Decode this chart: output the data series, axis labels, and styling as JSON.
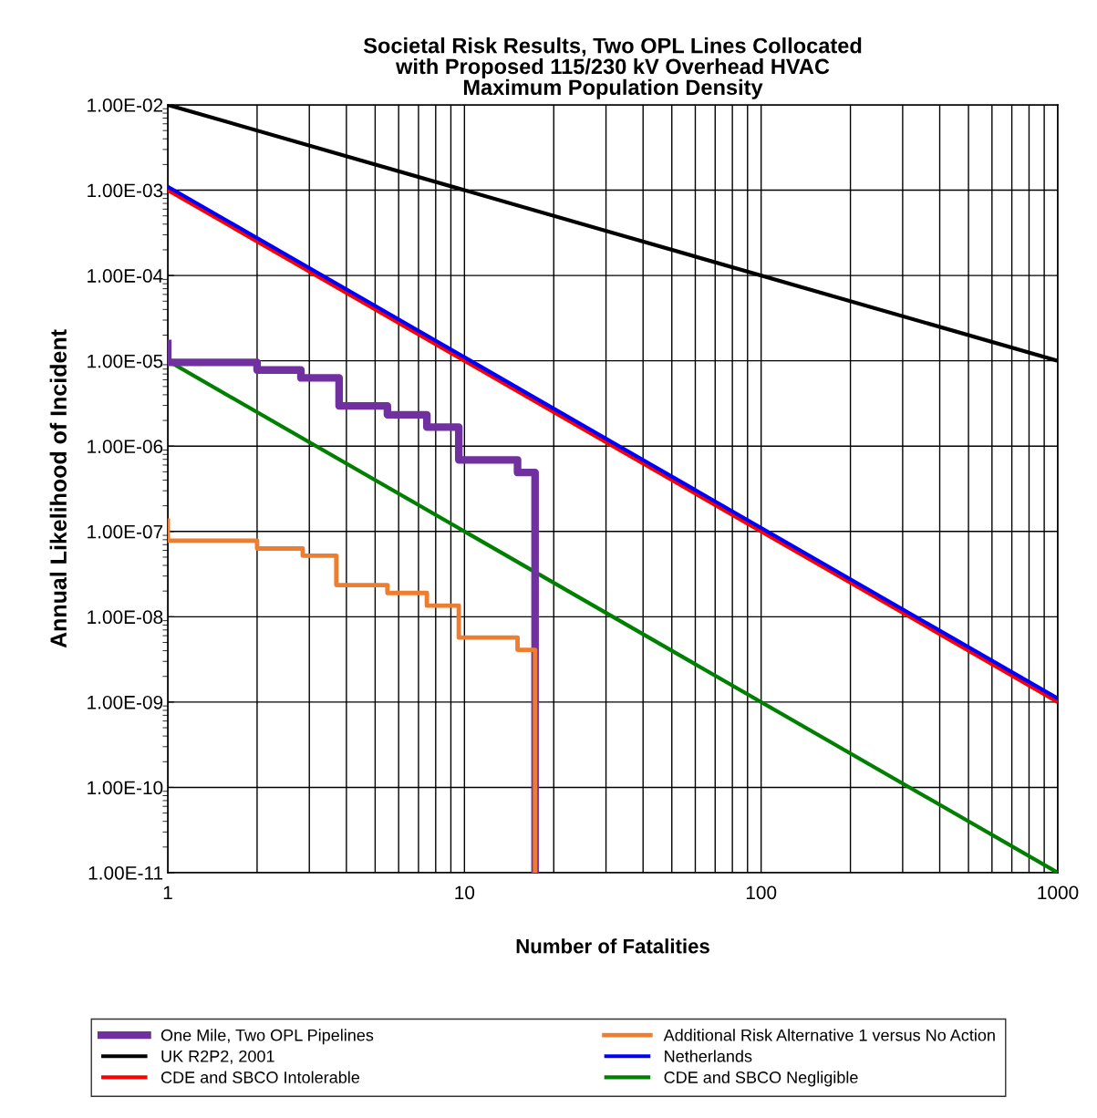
{
  "chart_data": {
    "type": "line",
    "title": "Societal Risk Results, Two OPL Lines Collocated\nwith Proposed 115/230 kV Overhead HVAC\nMaximum Population Density",
    "xlabel": "Number of Fatalities",
    "ylabel": "Annual Likelihood of Incident",
    "log": "xy",
    "grid": true,
    "legend": "bottom",
    "xlim": [
      1,
      1000
    ],
    "xticks": [
      1,
      10,
      100,
      1000
    ],
    "ylim": [
      1e-11,
      0.01
    ],
    "yticks": [
      {
        "value": 1e-11,
        "label": "1.00E-11"
      },
      {
        "value": 1e-10,
        "label": "1.00E-10"
      },
      {
        "value": 1e-09,
        "label": "1.00E-09"
      },
      {
        "value": 1e-08,
        "label": "1.00E-08"
      },
      {
        "value": 1e-07,
        "label": "1.00E-07"
      },
      {
        "value": 1e-06,
        "label": "1.00E-06"
      },
      {
        "value": 1e-05,
        "label": "1.00E-05"
      },
      {
        "value": 0.0001,
        "label": "1.00E-04"
      },
      {
        "value": 0.001,
        "label": "1.00E-03"
      },
      {
        "value": 0.01,
        "label": "1.00E-02"
      }
    ],
    "series": [
      {
        "name": "One Mile, Two OPL Pipelines",
        "type": "step",
        "color": "#7030a0",
        "x": [
          1,
          1,
          2,
          2.81,
          3.78,
          5.5,
          7.47,
          9.57,
          15.1,
          17.3
        ],
        "values": [
          1.6e-05,
          9.6e-06,
          7.8e-06,
          6.3e-06,
          2.96e-06,
          2.33e-06,
          1.67e-06,
          6.9e-07,
          4.9e-07,
          1e-11
        ]
      },
      {
        "name": "UK R2P2, 2001",
        "color": "#000000",
        "x": [
          1,
          1000
        ],
        "values": [
          0.01,
          1e-05
        ]
      },
      {
        "name": "CDE and SBCO Intolerable",
        "color": "#ff0000",
        "x": [
          1,
          1000
        ],
        "values": [
          0.001,
          1e-09
        ]
      },
      {
        "name": "Additional Risk Alternative 1 versus No Action",
        "type": "step",
        "color": "#ed7d31",
        "x": [
          1,
          1,
          2,
          2.85,
          3.7,
          5.5,
          7.47,
          9.57,
          15.1,
          17.3
        ],
        "values": [
          1.34e-07,
          7.8e-08,
          6.3e-08,
          5.2e-08,
          2.35e-08,
          1.9e-08,
          1.35e-08,
          5.7e-09,
          4.1e-09,
          1e-11
        ]
      },
      {
        "name": "Netherlands",
        "color": "#0000ff",
        "x": [
          1,
          1000
        ],
        "values": [
          0.0011,
          1.1e-09
        ]
      },
      {
        "name": "CDE and SBCO Negligible",
        "color": "#008000",
        "x": [
          1,
          1000
        ],
        "values": [
          1e-05,
          1e-11
        ]
      }
    ]
  }
}
